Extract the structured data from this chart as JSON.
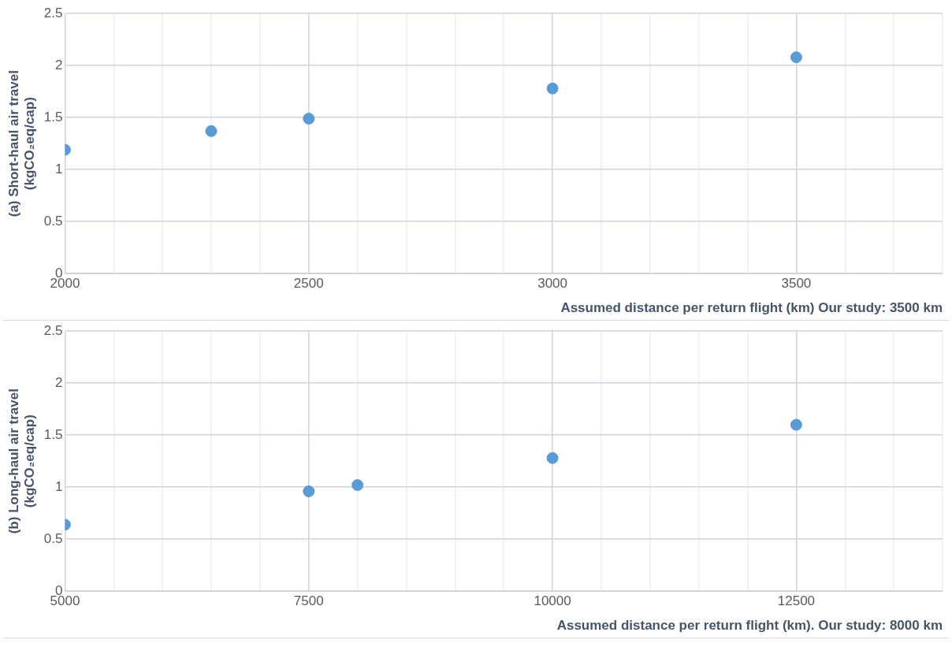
{
  "chart_data": [
    {
      "type": "scatter",
      "xlabel": "Assumed distance per return flight (km) Our study: 3500 km",
      "ylabel": "(a) Short-haul air travel\n(kgCO₂eq/cap)",
      "x": [
        2000,
        2300,
        2500,
        3000,
        3500
      ],
      "series": [
        {
          "color": "#5b9bd5",
          "values": [
            1.19,
            1.37,
            1.49,
            1.78,
            2.08
          ]
        }
      ],
      "xlim": [
        2000,
        3800
      ],
      "xticks": [
        2000,
        {
          "value": 2100,
          "label": null
        },
        {
          "value": 2200,
          "label": null
        },
        {
          "value": 2300,
          "label": null
        },
        {
          "value": 2400,
          "label": null
        },
        2500,
        {
          "value": 2600,
          "label": null
        },
        {
          "value": 2700,
          "label": null
        },
        {
          "value": 2800,
          "label": null
        },
        {
          "value": 2900,
          "label": null
        },
        3000,
        {
          "value": 3100,
          "label": null
        },
        {
          "value": 3200,
          "label": null
        },
        {
          "value": 3300,
          "label": null
        },
        {
          "value": 3400,
          "label": null
        },
        3500,
        {
          "value": 3600,
          "label": null
        },
        {
          "value": 3700,
          "label": null
        },
        {
          "value": 3800,
          "label": null
        }
      ],
      "ylim": [
        0,
        2.5
      ],
      "yticks": [
        0,
        0.5,
        1,
        1.5,
        2,
        2.5
      ],
      "grid": true,
      "legend": false,
      "marker": "circle"
    },
    {
      "type": "scatter",
      "xlabel": "Assumed distance per return flight (km). Our study: 8000 km",
      "ylabel": "(b) Long-haul air travel\n(kgCO₂eq/cap)",
      "x": [
        5000,
        7500,
        8000,
        10000,
        12500
      ],
      "series": [
        {
          "color": "#5b9bd5",
          "values": [
            0.64,
            0.96,
            1.02,
            1.28,
            1.6
          ]
        }
      ],
      "xlim": [
        5000,
        14000
      ],
      "xticks": [
        5000,
        {
          "value": 5500,
          "label": null
        },
        {
          "value": 6000,
          "label": null
        },
        {
          "value": 6500,
          "label": null
        },
        {
          "value": 7000,
          "label": null
        },
        7500,
        {
          "value": 8000,
          "label": null
        },
        {
          "value": 8500,
          "label": null
        },
        {
          "value": 9000,
          "label": null
        },
        {
          "value": 9500,
          "label": null
        },
        10000,
        {
          "value": 10500,
          "label": null
        },
        {
          "value": 11000,
          "label": null
        },
        {
          "value": 11500,
          "label": null
        },
        {
          "value": 12000,
          "label": null
        },
        12500,
        {
          "value": 13000,
          "label": null
        },
        {
          "value": 13500,
          "label": null
        },
        {
          "value": 14000,
          "label": null
        }
      ],
      "ylim": [
        0,
        2.5
      ],
      "yticks": [
        0,
        0.5,
        1,
        1.5,
        2,
        2.5
      ],
      "grid": true,
      "legend": false,
      "marker": "circle"
    }
  ]
}
